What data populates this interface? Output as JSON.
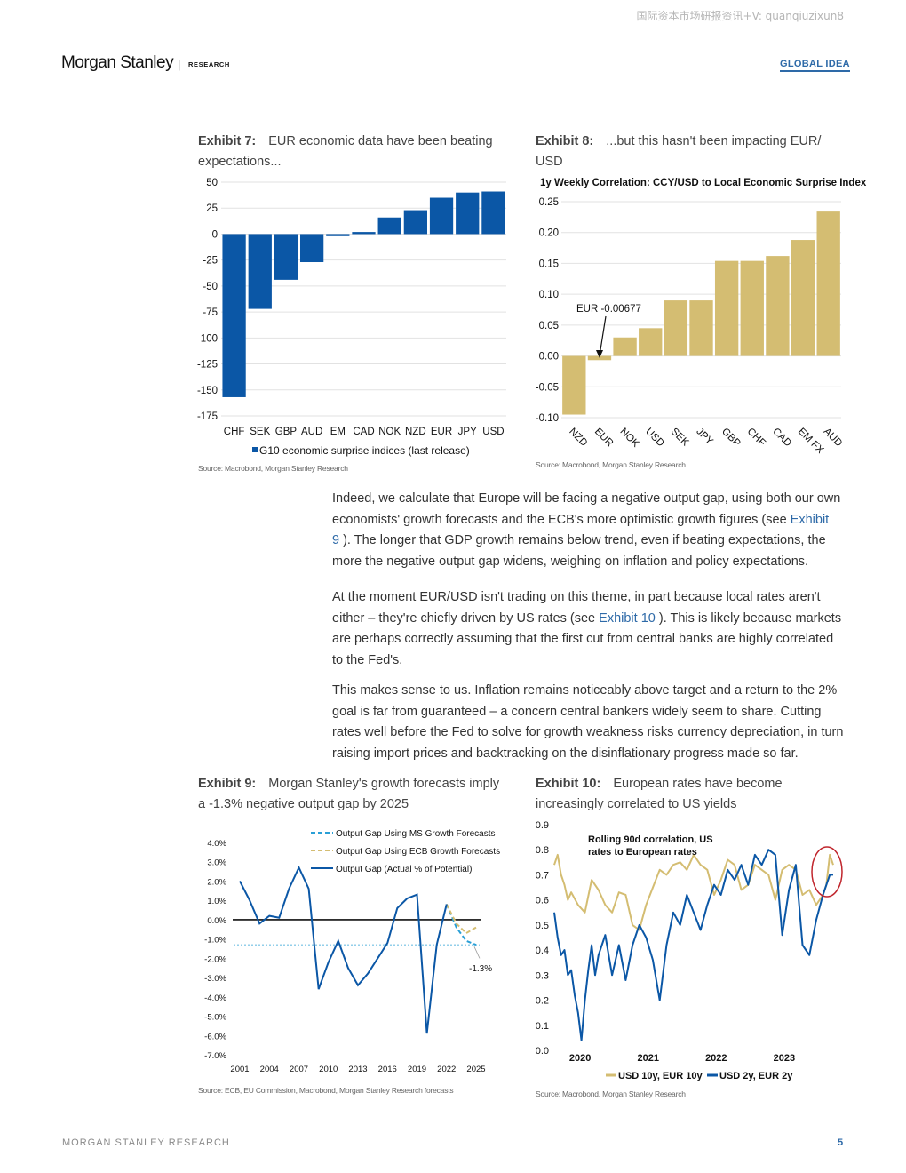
{
  "watermark": "国际资本市场研报资讯+V: quanqiuzixun8",
  "header": {
    "brand": "Morgan Stanley",
    "separator": "|",
    "section": "RESEARCH",
    "tag": "GLOBAL IDEA"
  },
  "exhibit7": {
    "label": "Exhibit 7:",
    "title_line1": "EUR economic data have been beating",
    "title_line2": "expectations...",
    "source": "Source: Macrobond, Morgan Stanley Research",
    "chart_data": {
      "type": "bar",
      "categories": [
        "CHF",
        "SEK",
        "GBP",
        "AUD",
        "EM",
        "CAD",
        "NOK",
        "NZD",
        "EUR",
        "JPY",
        "USD"
      ],
      "values": [
        -157,
        -72,
        -44,
        -27,
        -2,
        2,
        16,
        23,
        35,
        40,
        41
      ],
      "ylim": [
        -175,
        50
      ],
      "yticks": [
        "50",
        "25",
        "0",
        "-25",
        "-50",
        "-75",
        "-100",
        "-125",
        "-150",
        "-175"
      ],
      "ytick_values": [
        50,
        25,
        0,
        -25,
        -50,
        -75,
        -100,
        -125,
        -150,
        -175
      ],
      "legend": "G10 economic surprise indices (last release)",
      "color": "#0b57a6"
    }
  },
  "exhibit8": {
    "label": "Exhibit 8:",
    "title_line1": "...but this hasn't been impacting EUR/",
    "title_line2": "USD",
    "source": "Source: Macrobond, Morgan Stanley Research",
    "chart_data": {
      "type": "bar",
      "title": "1y Weekly Correlation: CCY/USD to Local Economic Surprise Index",
      "categories": [
        "NZD",
        "EUR",
        "NOK",
        "USD",
        "SEK",
        "JPY",
        "GBP",
        "CHF",
        "CAD",
        "EM FX",
        "AUD"
      ],
      "values": [
        -0.095,
        -0.00677,
        0.03,
        0.045,
        0.09,
        0.09,
        0.154,
        0.154,
        0.162,
        0.188,
        0.234
      ],
      "ylim": [
        -0.1,
        0.25
      ],
      "yticks": [
        "0.25",
        "0.20",
        "0.15",
        "0.10",
        "0.05",
        "0.00",
        "-0.05",
        "-0.10"
      ],
      "ytick_values": [
        0.25,
        0.2,
        0.15,
        0.1,
        0.05,
        0,
        -0.05,
        -0.1
      ],
      "annotation": "EUR -0.00677",
      "color": "#d4bd72"
    }
  },
  "paragraphs": {
    "p1_l1": "Indeed, we calculate that Europe will be facing a negative output gap, using both our own",
    "p1_l2a": "economists' growth forecasts and the ECB's more optimistic growth figures (see ",
    "p1_l2_link": "Exhibit",
    "p1_l3_link": "9",
    "p1_l3b": " ). The longer that GDP growth remains below trend, even if beating expectations, the",
    "p1_l4": "more the negative output gap widens, weighing on inflation and policy expectations.",
    "p2_l1": "At the moment EUR/USD isn't trading on this theme, in part because local rates aren't",
    "p2_l2a": "either – they're chiefly driven by US rates (see ",
    "p2_l2_link": "Exhibit 10",
    "p2_l2b": " ). This is likely because markets",
    "p2_l3": "are perhaps correctly assuming that the first cut from central banks are highly correlated",
    "p2_l4": "to the Fed's.",
    "p3_l1": "This makes sense to us. Inflation remains noticeably above target and a return to the 2%",
    "p3_l2": "goal is far from guaranteed – a concern central bankers widely seem to share. Cutting",
    "p3_l3": "rates well before the Fed to solve for growth weakness risks currency depreciation, in turn",
    "p3_l4": "raising import prices and backtracking on the disinflationary progress made so far."
  },
  "exhibit9": {
    "label": "Exhibit 9:",
    "title_line1": "Morgan Stanley's growth forecasts imply",
    "title_line2": "a -1.3% negative output gap by 2025",
    "source": "Source: ECB, EU Commission, Macrobond, Morgan Stanley Research forecasts",
    "chart_data": {
      "type": "line",
      "ylim": [
        -7,
        4
      ],
      "xlim": [
        2001,
        2025
      ],
      "yticks": [
        "4.0%",
        "3.0%",
        "2.0%",
        "1.0%",
        "0.0%",
        "-1.0%",
        "-2.0%",
        "-3.0%",
        "-4.0%",
        "-5.0%",
        "-6.0%",
        "-7.0%"
      ],
      "ytick_values": [
        4,
        3,
        2,
        1,
        0,
        -1,
        -2,
        -3,
        -4,
        -5,
        -6,
        -7
      ],
      "xticks": [
        "2001",
        "2004",
        "2007",
        "2010",
        "2013",
        "2016",
        "2019",
        "2022",
        "2025"
      ],
      "xtick_values": [
        2001,
        2004,
        2007,
        2010,
        2013,
        2016,
        2019,
        2022,
        2025
      ],
      "annotation": "-1.3%",
      "series": [
        {
          "name": "Output Gap Using MS Growth Forecasts",
          "color": "#2a9fd6",
          "dash": true,
          "x": [
            2022,
            2023,
            2024,
            2025
          ],
          "y": [
            0.8,
            -0.4,
            -1.1,
            -1.3
          ]
        },
        {
          "name": "Output Gap Using ECB Growth Forecasts",
          "color": "#d4bd72",
          "dash": true,
          "x": [
            2022,
            2023,
            2024,
            2025
          ],
          "y": [
            0.8,
            -0.2,
            -0.7,
            -0.4
          ]
        },
        {
          "name": "Output Gap (Actual % of Potential)",
          "color": "#0b57a6",
          "dash": false,
          "x": [
            2001,
            2002,
            2003,
            2004,
            2005,
            2006,
            2007,
            2008,
            2009,
            2010,
            2011,
            2012,
            2013,
            2014,
            2015,
            2016,
            2017,
            2018,
            2019,
            2020,
            2021,
            2022
          ],
          "y": [
            2.0,
            1.0,
            -0.2,
            0.2,
            0.1,
            1.6,
            2.7,
            1.6,
            -3.6,
            -2.2,
            -1.1,
            -2.5,
            -3.4,
            -2.8,
            -2.0,
            -1.2,
            0.6,
            1.1,
            1.3,
            -5.9,
            -1.3,
            0.8
          ]
        }
      ]
    }
  },
  "exhibit10": {
    "label": "Exhibit 10:",
    "title_line1": "European rates have become",
    "title_line2": "increasingly correlated to US yields",
    "source": "Source: Macrobond, Morgan Stanley Research",
    "chart_data": {
      "type": "line",
      "title": "Rolling 90d correlation, US rates to European rates",
      "title_line1": "Rolling 90d correlation, US",
      "title_line2": "rates to European rates",
      "ylim": [
        0,
        0.9
      ],
      "xlim": [
        2019.75,
        2023.85
      ],
      "yticks": [
        "0.9",
        "0.8",
        "0.7",
        "0.6",
        "0.5",
        "0.4",
        "0.3",
        "0.2",
        "0.1",
        "0.0"
      ],
      "ytick_values": [
        0.9,
        0.8,
        0.7,
        0.6,
        0.5,
        0.4,
        0.3,
        0.2,
        0.1,
        0
      ],
      "xticks": [
        "2020",
        "2021",
        "2022",
        "2023"
      ],
      "xtick_values": [
        2020,
        2021,
        2022,
        2023
      ],
      "series": [
        {
          "name": "USD 10y, EUR 10y",
          "color": "#d4bd72",
          "x": [
            2019.75,
            2019.8,
            2019.85,
            2019.9,
            2019.95,
            2020.0,
            2020.1,
            2020.2,
            2020.3,
            2020.4,
            2020.5,
            2020.6,
            2020.7,
            2020.8,
            2020.9,
            2021.0,
            2021.1,
            2021.2,
            2021.3,
            2021.4,
            2021.5,
            2021.6,
            2021.7,
            2021.8,
            2021.9,
            2022.0,
            2022.1,
            2022.2,
            2022.3,
            2022.4,
            2022.5,
            2022.6,
            2022.7,
            2022.8,
            2022.9,
            2023.0,
            2023.1,
            2023.2,
            2023.3,
            2023.4,
            2023.5,
            2023.6,
            2023.7,
            2023.75,
            2023.8,
            2023.85
          ],
          "y": [
            0.74,
            0.78,
            0.7,
            0.66,
            0.6,
            0.63,
            0.58,
            0.55,
            0.68,
            0.64,
            0.58,
            0.55,
            0.63,
            0.62,
            0.5,
            0.48,
            0.58,
            0.65,
            0.72,
            0.7,
            0.74,
            0.75,
            0.72,
            0.78,
            0.74,
            0.72,
            0.62,
            0.68,
            0.76,
            0.74,
            0.64,
            0.66,
            0.74,
            0.72,
            0.7,
            0.6,
            0.72,
            0.74,
            0.72,
            0.62,
            0.64,
            0.58,
            0.62,
            0.66,
            0.78,
            0.74
          ]
        },
        {
          "name": "USD 2y, EUR 2y",
          "color": "#0b57a6",
          "x": [
            2019.75,
            2019.8,
            2019.85,
            2019.9,
            2019.95,
            2020.0,
            2020.05,
            2020.1,
            2020.15,
            2020.2,
            2020.25,
            2020.3,
            2020.35,
            2020.4,
            2020.5,
            2020.6,
            2020.7,
            2020.8,
            2020.9,
            2021.0,
            2021.1,
            2021.2,
            2021.3,
            2021.4,
            2021.5,
            2021.6,
            2021.7,
            2021.8,
            2021.9,
            2022.0,
            2022.1,
            2022.2,
            2022.3,
            2022.4,
            2022.5,
            2022.6,
            2022.7,
            2022.8,
            2022.9,
            2023.0,
            2023.1,
            2023.2,
            2023.3,
            2023.4,
            2023.5,
            2023.6,
            2023.7,
            2023.8,
            2023.85
          ],
          "y": [
            0.55,
            0.45,
            0.38,
            0.4,
            0.3,
            0.32,
            0.22,
            0.15,
            0.04,
            0.2,
            0.32,
            0.42,
            0.3,
            0.38,
            0.46,
            0.3,
            0.42,
            0.28,
            0.42,
            0.5,
            0.45,
            0.36,
            0.2,
            0.42,
            0.55,
            0.5,
            0.62,
            0.55,
            0.48,
            0.58,
            0.66,
            0.62,
            0.72,
            0.68,
            0.74,
            0.66,
            0.78,
            0.74,
            0.8,
            0.78,
            0.46,
            0.64,
            0.74,
            0.42,
            0.38,
            0.52,
            0.62,
            0.7,
            0.7
          ]
        }
      ]
    }
  },
  "footer": {
    "text": "MORGAN STANLEY RESEARCH",
    "page": "5"
  }
}
